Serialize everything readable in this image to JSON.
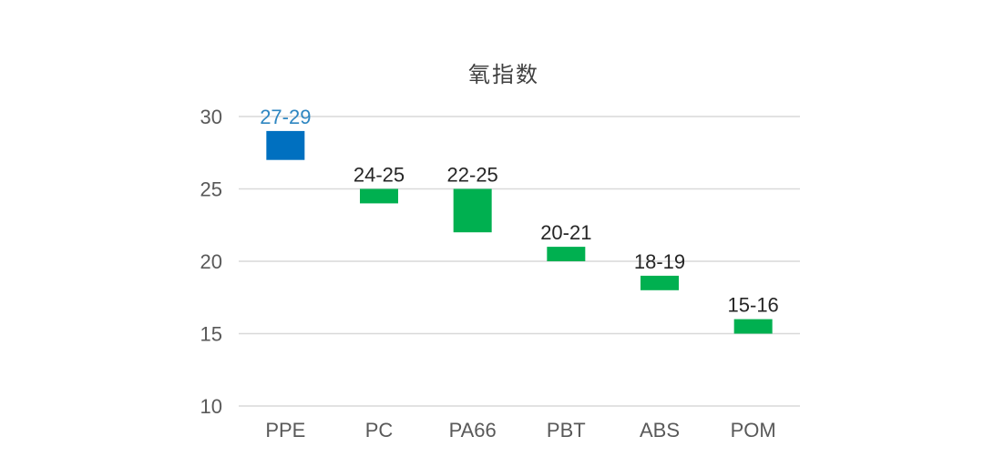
{
  "chart_data": {
    "type": "bar",
    "title": "氧指数",
    "xlabel": "",
    "ylabel": "",
    "ylim": [
      10,
      30
    ],
    "yticks": [
      10,
      15,
      20,
      25,
      30
    ],
    "grid": true,
    "categories": [
      "PPE",
      "PC",
      "PA66",
      "PBT",
      "ABS",
      "POM"
    ],
    "ranges": [
      {
        "category": "PPE",
        "low": 27,
        "high": 29,
        "label": "27-29",
        "color": "#0070C0",
        "label_color": "#2E86C1"
      },
      {
        "category": "PC",
        "low": 24,
        "high": 25,
        "label": "24-25",
        "color": "#00B050",
        "label_color": "#262626"
      },
      {
        "category": "PA66",
        "low": 22,
        "high": 25,
        "label": "22-25",
        "color": "#00B050",
        "label_color": "#262626"
      },
      {
        "category": "PBT",
        "low": 20,
        "high": 21,
        "label": "20-21",
        "color": "#00B050",
        "label_color": "#262626"
      },
      {
        "category": "ABS",
        "low": 18,
        "high": 19,
        "label": "18-19",
        "color": "#00B050",
        "label_color": "#262626"
      },
      {
        "category": "POM",
        "low": 15,
        "high": 16,
        "label": "15-16",
        "color": "#00B050",
        "label_color": "#262626"
      }
    ]
  }
}
